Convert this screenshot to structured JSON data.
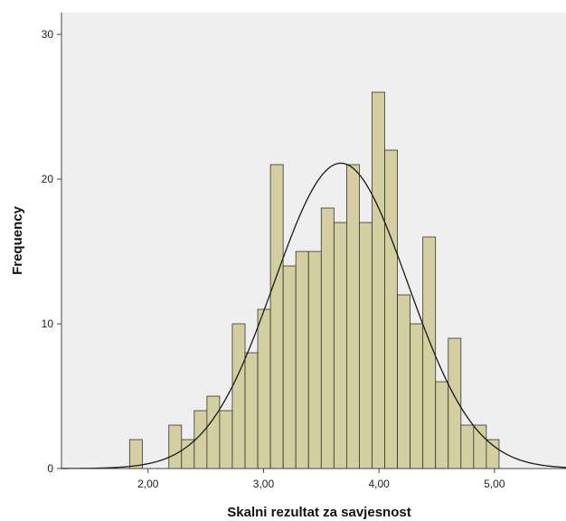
{
  "chart_data": {
    "type": "bar",
    "title": "",
    "xlabel": "Skalni rezultat za savjesnost",
    "ylabel": "Frequency",
    "xlim": [
      1.25,
      5.62
    ],
    "ylim": [
      0,
      31.5
    ],
    "x_ticks": [
      2.0,
      3.0,
      4.0,
      5.0
    ],
    "x_tick_labels": [
      "2,00",
      "3,00",
      "4,00",
      "5,00"
    ],
    "y_ticks": [
      0,
      10,
      20,
      30
    ],
    "y_tick_labels": [
      "0",
      "10",
      "20",
      "30"
    ],
    "grid": false,
    "legend": "none",
    "bar_color": "#d3cfa0",
    "plot_background": "#efefef",
    "bins": [
      {
        "x0": 1.84,
        "x1": 1.95,
        "value": 2
      },
      {
        "x0": 2.18,
        "x1": 2.29,
        "value": 3
      },
      {
        "x0": 2.29,
        "x1": 2.4,
        "value": 2
      },
      {
        "x0": 2.4,
        "x1": 2.51,
        "value": 4
      },
      {
        "x0": 2.51,
        "x1": 2.62,
        "value": 5
      },
      {
        "x0": 2.62,
        "x1": 2.73,
        "value": 4
      },
      {
        "x0": 2.73,
        "x1": 2.84,
        "value": 10
      },
      {
        "x0": 2.84,
        "x1": 2.95,
        "value": 8
      },
      {
        "x0": 2.95,
        "x1": 3.06,
        "value": 11
      },
      {
        "x0": 3.06,
        "x1": 3.17,
        "value": 21
      },
      {
        "x0": 3.17,
        "x1": 3.28,
        "value": 14
      },
      {
        "x0": 3.28,
        "x1": 3.39,
        "value": 15
      },
      {
        "x0": 3.39,
        "x1": 3.5,
        "value": 15
      },
      {
        "x0": 3.5,
        "x1": 3.61,
        "value": 18
      },
      {
        "x0": 3.61,
        "x1": 3.72,
        "value": 17
      },
      {
        "x0": 3.72,
        "x1": 3.83,
        "value": 21
      },
      {
        "x0": 3.83,
        "x1": 3.94,
        "value": 17
      },
      {
        "x0": 3.94,
        "x1": 4.05,
        "value": 26
      },
      {
        "x0": 4.05,
        "x1": 4.16,
        "value": 22
      },
      {
        "x0": 4.16,
        "x1": 4.27,
        "value": 12
      },
      {
        "x0": 4.27,
        "x1": 4.38,
        "value": 10
      },
      {
        "x0": 4.38,
        "x1": 4.49,
        "value": 16
      },
      {
        "x0": 4.49,
        "x1": 4.6,
        "value": 6
      },
      {
        "x0": 4.6,
        "x1": 4.71,
        "value": 9
      },
      {
        "x0": 4.71,
        "x1": 4.82,
        "value": 3
      },
      {
        "x0": 4.82,
        "x1": 4.93,
        "value": 3
      },
      {
        "x0": 4.93,
        "x1": 5.04,
        "value": 2
      }
    ],
    "normal_curve": {
      "mean": 3.67,
      "sd": 0.58,
      "peak": 21.1
    }
  }
}
